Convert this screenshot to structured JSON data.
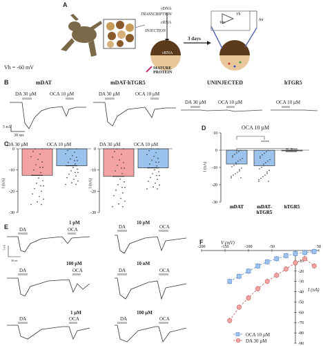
{
  "panels": {
    "A": "A",
    "B": "B",
    "C": "C",
    "D": "D",
    "E": "E",
    "F": "F"
  },
  "schematic": {
    "cdna": "cDNA",
    "transcription": "TRANSCRIPTION",
    "crna": "cRNA",
    "injection": "INJECTION",
    "crna_oocyte": "cRNA",
    "mature_protein": "MATURE\nPROTEIN",
    "days": "3 days",
    "vh_label": "Vh",
    "vm_label": "Vm",
    "im_label": "Im",
    "vh_value": "Vh = -60 mV"
  },
  "traces_b": {
    "titles": [
      "mDAT",
      "mDAT-hTGR5",
      "UNINJECTED",
      "hTGR5"
    ],
    "da": "DA 30 µM",
    "oca": "OCA 10 µM",
    "scale_y": "5 nA",
    "scale_x": "30 sec"
  },
  "panel_c": {
    "ylabel": "I (nA)",
    "yticks": [
      "0",
      "-10",
      "-20",
      "-30"
    ],
    "chart_data": [
      {
        "type": "bar",
        "title": "mDAT",
        "categories": [
          "DA 30 µM",
          "OCA 10 µM"
        ],
        "values": [
          -12.5,
          -8
        ],
        "ylim": [
          -30,
          0
        ],
        "colors": [
          "#f4a3a3",
          "#9bc3ee"
        ]
      },
      {
        "type": "bar",
        "title": "mDAT-hTGR5",
        "categories": [
          "DA 30 µM",
          "OCA 10 µM"
        ],
        "values": [
          -13,
          -9
        ],
        "ylim": [
          -30,
          0
        ],
        "colors": [
          "#f4a3a3",
          "#9bc3ee"
        ]
      }
    ]
  },
  "panel_d": {
    "title": "OCA 10 µM",
    "ylabel": "I (nA)",
    "yticks": [
      "10",
      "0",
      "-10",
      "-20",
      "-30"
    ],
    "ns": "ns",
    "sig": "****",
    "chart_data": {
      "type": "bar",
      "categories": [
        "mDAT",
        "mDAT-\nhTGR5",
        "hTGR5"
      ],
      "values": [
        -8,
        -9,
        0
      ],
      "ylim": [
        -30,
        10
      ],
      "colors": [
        "#9bc3ee",
        "#9bc3ee",
        "#9bc3ee"
      ]
    }
  },
  "panel_e": {
    "conc": [
      "1 pM",
      "10 pM",
      "100 pM",
      "10 nM",
      "1 µM",
      "100 µM"
    ],
    "da": "DA",
    "oca": "OCA",
    "scale_y": "5 nA",
    "scale_x": "30 sec"
  },
  "panel_f": {
    "xlabel": "V (mV)",
    "ylabel": "I (nA)",
    "xticks": [
      "-200",
      "-150",
      "-100",
      "-50",
      "50"
    ],
    "yticks": [
      "-10",
      "-20",
      "-30",
      "-40",
      "-50",
      "-60",
      "-70",
      "-80",
      "-90"
    ],
    "chart_data": {
      "type": "line",
      "x": [
        -140,
        -120,
        -100,
        -80,
        -60,
        -40,
        -20,
        0,
        20,
        40
      ],
      "series": [
        {
          "name": "OCA 10 µM",
          "values": [
            -30,
            -25,
            -20,
            -15,
            -11,
            -8,
            -5,
            -3,
            -2,
            -1
          ]
        },
        {
          "name": "DA 30 µM",
          "values": [
            -68,
            -55,
            -46,
            -37,
            -30,
            -24,
            -18,
            -12,
            -8,
            -15
          ]
        }
      ],
      "xlim": [
        -200,
        50
      ],
      "ylim": [
        -90,
        0
      ]
    }
  }
}
